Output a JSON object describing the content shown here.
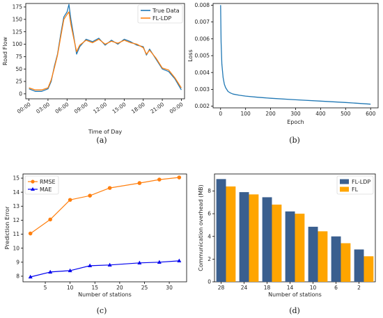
{
  "captions": [
    "(a)",
    "(b)",
    "(c)",
    "(d)"
  ],
  "colors": {
    "blue": "#1f77b4",
    "orange": "#ff7f0e",
    "bar_blue": "#3a5f8f",
    "bar_orange": "#ffa500",
    "mae_blue": "#0000ee"
  },
  "chart_data": [
    {
      "type": "line",
      "xlabel": "Time of Day",
      "ylabel": "Road Flow",
      "xticks": [
        "00:00",
        "03:00",
        "06:00",
        "09:00",
        "12:00",
        "15:00",
        "18:00",
        "21:00",
        "00:00"
      ],
      "xlim": [
        -0.5,
        24.5
      ],
      "ylim": [
        -10,
        182
      ],
      "yticks": [
        0,
        25,
        50,
        75,
        100,
        125,
        150,
        175
      ],
      "series": [
        {
          "name": "True Data",
          "x": [
            0,
            1,
            2,
            3,
            3.5,
            4,
            4.5,
            5,
            5.5,
            6,
            6.3,
            6.6,
            7,
            7.5,
            8,
            9,
            10,
            11,
            12,
            13,
            14,
            15,
            16,
            17,
            18,
            18.5,
            19,
            20,
            21,
            22,
            23,
            24
          ],
          "values": [
            10,
            5,
            5,
            10,
            25,
            55,
            80,
            120,
            155,
            165,
            180,
            150,
            120,
            80,
            95,
            110,
            105,
            112,
            98,
            108,
            100,
            110,
            105,
            98,
            95,
            78,
            90,
            70,
            50,
            45,
            30,
            8
          ]
        },
        {
          "name": "FL-LDP",
          "x": [
            0,
            1,
            2,
            3,
            3.5,
            4,
            4.5,
            5,
            5.5,
            6,
            6.3,
            6.6,
            7,
            7.5,
            8,
            9,
            10,
            11,
            12,
            13,
            14,
            15,
            16,
            17,
            18,
            18.5,
            19,
            20,
            21,
            22,
            23,
            24
          ],
          "values": [
            12,
            8,
            8,
            12,
            28,
            52,
            78,
            115,
            150,
            160,
            165,
            140,
            115,
            85,
            98,
            108,
            103,
            110,
            100,
            106,
            102,
            108,
            103,
            100,
            93,
            80,
            88,
            72,
            52,
            48,
            32,
            12
          ]
        }
      ],
      "legend": "top-right"
    },
    {
      "type": "line",
      "xlabel": "Epoch",
      "ylabel": "Loss",
      "xlim": [
        -30,
        630
      ],
      "ylim": [
        0.0019,
        0.0081
      ],
      "xticks": [
        0,
        100,
        200,
        300,
        400,
        500,
        600
      ],
      "yticks": [
        0.002,
        0.003,
        0.004,
        0.005,
        0.006,
        0.007,
        0.008
      ],
      "series": [
        {
          "x": [
            0,
            2,
            5,
            10,
            15,
            20,
            30,
            40,
            50,
            75,
            100,
            150,
            200,
            300,
            400,
            500,
            600
          ],
          "values": [
            0.008,
            0.0058,
            0.0045,
            0.0037,
            0.0033,
            0.0031,
            0.00287,
            0.00278,
            0.00272,
            0.00265,
            0.0026,
            0.00253,
            0.00247,
            0.00238,
            0.0023,
            0.00222,
            0.00212
          ]
        }
      ]
    },
    {
      "type": "line",
      "xlabel": "Number of stations",
      "ylabel": "Prediction Error",
      "xlim": [
        0.5,
        33.5
      ],
      "ylim": [
        7.6,
        15.3
      ],
      "xticks": [
        5,
        10,
        15,
        20,
        25,
        30
      ],
      "yticks": [
        8,
        9,
        10,
        11,
        12,
        13,
        14,
        15
      ],
      "x": [
        2,
        6,
        10,
        14,
        18,
        24,
        28,
        32
      ],
      "series": [
        {
          "name": "RMSE",
          "values": [
            11.05,
            12.05,
            13.45,
            13.75,
            14.3,
            14.65,
            14.9,
            15.05
          ]
        },
        {
          "name": "MAE",
          "values": [
            7.95,
            8.3,
            8.4,
            8.75,
            8.8,
            8.95,
            9.0,
            9.1
          ]
        }
      ],
      "legend": "top-left"
    },
    {
      "type": "bar",
      "xlabel": "Number of stations",
      "ylabel": "Communication overhead (MB)",
      "categories": [
        "28",
        "24",
        "18",
        "14",
        "10",
        "6",
        "2"
      ],
      "ylim": [
        0,
        9.5
      ],
      "yticks": [
        0,
        2,
        4,
        6,
        8
      ],
      "series": [
        {
          "name": "FL-LDP",
          "values": [
            9.05,
            7.9,
            7.45,
            6.2,
            4.85,
            4.0,
            2.85
          ]
        },
        {
          "name": "FL",
          "values": [
            8.4,
            7.7,
            6.8,
            6.0,
            4.45,
            3.4,
            2.25
          ]
        }
      ],
      "legend": "top-right"
    }
  ]
}
